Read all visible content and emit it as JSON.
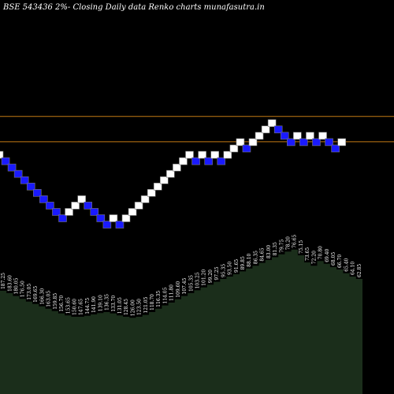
{
  "chart_data": {
    "type": "renko",
    "title": "BSE 543436  2%-  Closing Daily data  Renko  charts munafasutra.in",
    "colors": {
      "background": "#000000",
      "up_brick": "#ffffff",
      "down_brick": "#1a1aff",
      "brick_border": "#777777",
      "level_line": "#c47a14",
      "volume_area": "#1b2e1b",
      "label_text": "#ffffff"
    },
    "level_lines": [
      2,
      6
    ],
    "bricks": [
      {
        "d": "up",
        "y": 0
      },
      {
        "d": "down",
        "y": -1
      },
      {
        "d": "down",
        "y": -2
      },
      {
        "d": "down",
        "y": -3
      },
      {
        "d": "down",
        "y": -4
      },
      {
        "d": "down",
        "y": -5
      },
      {
        "d": "down",
        "y": -6
      },
      {
        "d": "down",
        "y": -7
      },
      {
        "d": "down",
        "y": -8
      },
      {
        "d": "down",
        "y": -9
      },
      {
        "d": "down",
        "y": -10
      },
      {
        "d": "up",
        "y": -9
      },
      {
        "d": "up",
        "y": -8
      },
      {
        "d": "up",
        "y": -7
      },
      {
        "d": "down",
        "y": -8
      },
      {
        "d": "down",
        "y": -9
      },
      {
        "d": "down",
        "y": -10
      },
      {
        "d": "down",
        "y": -11
      },
      {
        "d": "up",
        "y": -10
      },
      {
        "d": "down",
        "y": -11
      },
      {
        "d": "up",
        "y": -10
      },
      {
        "d": "up",
        "y": -9
      },
      {
        "d": "up",
        "y": -8
      },
      {
        "d": "up",
        "y": -7
      },
      {
        "d": "up",
        "y": -6
      },
      {
        "d": "up",
        "y": -5
      },
      {
        "d": "up",
        "y": -4
      },
      {
        "d": "up",
        "y": -3
      },
      {
        "d": "up",
        "y": -2
      },
      {
        "d": "up",
        "y": -1
      },
      {
        "d": "up",
        "y": 0
      },
      {
        "d": "down",
        "y": -1
      },
      {
        "d": "up",
        "y": 0
      },
      {
        "d": "down",
        "y": -1
      },
      {
        "d": "up",
        "y": 0
      },
      {
        "d": "down",
        "y": -1
      },
      {
        "d": "up",
        "y": 0
      },
      {
        "d": "up",
        "y": 1
      },
      {
        "d": "up",
        "y": 2
      },
      {
        "d": "down",
        "y": 1
      },
      {
        "d": "up",
        "y": 2
      },
      {
        "d": "up",
        "y": 3
      },
      {
        "d": "up",
        "y": 4
      },
      {
        "d": "up",
        "y": 5
      },
      {
        "d": "down",
        "y": 4
      },
      {
        "d": "down",
        "y": 3
      },
      {
        "d": "down",
        "y": 2
      },
      {
        "d": "up",
        "y": 3
      },
      {
        "d": "down",
        "y": 2
      },
      {
        "d": "up",
        "y": 3
      },
      {
        "d": "down",
        "y": 2
      },
      {
        "d": "up",
        "y": 3
      },
      {
        "d": "down",
        "y": 2
      },
      {
        "d": "down",
        "y": 1
      },
      {
        "d": "up",
        "y": 2
      }
    ],
    "price_labels": [
      "187.25",
      "183.60",
      "180.05",
      "176.50",
      "173.05",
      "169.65",
      "166.30",
      "163.05",
      "159.85",
      "156.70",
      "153.65",
      "150.60",
      "147.65",
      "144.75",
      "141.90",
      "139.10",
      "136.35",
      "133.70",
      "131.05",
      "128.45",
      "126.00",
      "123.50",
      "121.05",
      "118.70",
      "116.35",
      "114.05",
      "111.80",
      "109.60",
      "107.45",
      "105.35",
      "103.25",
      "101.20",
      "99.20",
      "97.25",
      "95.35",
      "93.50",
      "91.65",
      "89.85",
      "88.10",
      "86.35",
      "84.65",
      "83.00",
      "81.35",
      "79.75",
      "78.20",
      "76.65",
      "75.15",
      "73.65",
      "72.20",
      "70.80",
      "69.40",
      "68.05",
      "66.70",
      "65.40",
      "64.10",
      "62.85"
    ],
    "volume": [
      0.85,
      0.8,
      0.74,
      0.68,
      0.62,
      0.57,
      0.52,
      0.47,
      0.42,
      0.37,
      0.33,
      0.3,
      0.3,
      0.32,
      0.35,
      0.38,
      0.4,
      0.37,
      0.33,
      0.3,
      0.28,
      0.3,
      0.34,
      0.4,
      0.47,
      0.54,
      0.6,
      0.67,
      0.74,
      0.8,
      0.86,
      0.92,
      0.98,
      1.04,
      1.1,
      1.15,
      1.2,
      1.26,
      1.32,
      1.38,
      1.44,
      1.5,
      1.56,
      1.62,
      1.68,
      1.72,
      1.6,
      1.45,
      1.38,
      1.48,
      1.42,
      1.35,
      1.3,
      1.22,
      1.15,
      1.1
    ]
  }
}
